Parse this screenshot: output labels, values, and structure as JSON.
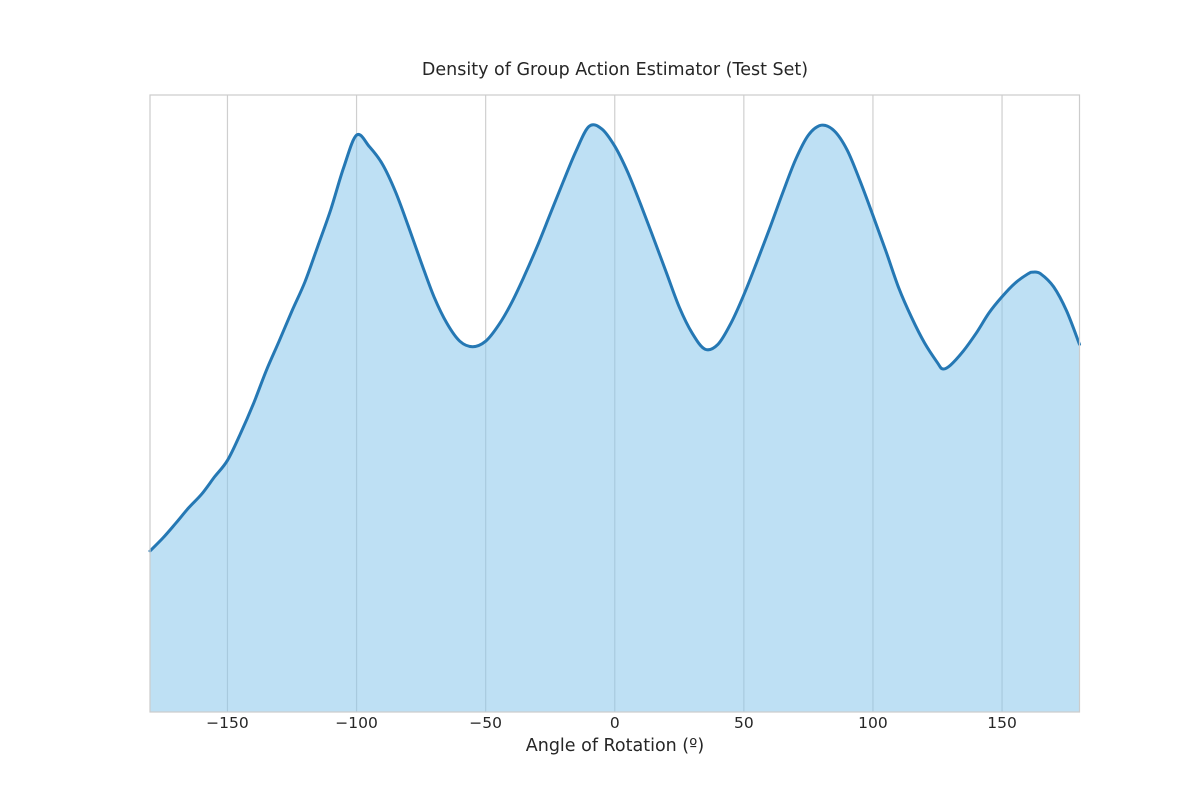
{
  "chart_data": {
    "type": "area",
    "title": "Density of Group Action Estimator (Test Set)",
    "xlabel": "Angle of Rotation (º)",
    "ylabel": "",
    "xlim": [
      -180,
      180
    ],
    "x_ticks": [
      {
        "value": -150,
        "label": "−150"
      },
      {
        "value": -100,
        "label": "−100"
      },
      {
        "value": -50,
        "label": "−50"
      },
      {
        "value": 0,
        "label": "0"
      },
      {
        "value": 50,
        "label": "50"
      },
      {
        "value": 100,
        "label": "100"
      },
      {
        "value": 150,
        "label": "150"
      }
    ],
    "y_axis": "no tick labels or gridlines shown; values below are density as fraction of plot height",
    "grid": "vertical gridlines only, drawn below data",
    "legend": "none",
    "series": [
      {
        "name": "kde-density",
        "x": [
          -180,
          -175,
          -170,
          -165,
          -160,
          -155,
          -150,
          -145,
          -140,
          -135,
          -130,
          -125,
          -120,
          -115,
          -110,
          -105,
          -100,
          -95,
          -90,
          -85,
          -80,
          -75,
          -70,
          -65,
          -60,
          -55,
          -50,
          -45,
          -40,
          -35,
          -30,
          -25,
          -20,
          -15,
          -10,
          -5,
          0,
          5,
          10,
          15,
          20,
          25,
          30,
          35,
          40,
          45,
          50,
          55,
          60,
          65,
          70,
          75,
          80,
          85,
          90,
          95,
          100,
          105,
          110,
          115,
          120,
          125,
          127,
          130,
          135,
          140,
          145,
          150,
          155,
          160,
          162,
          165,
          170,
          175,
          180
        ],
        "y": [
          0.261,
          0.282,
          0.306,
          0.331,
          0.353,
          0.381,
          0.408,
          0.451,
          0.499,
          0.553,
          0.601,
          0.65,
          0.697,
          0.755,
          0.814,
          0.882,
          0.935,
          0.916,
          0.888,
          0.844,
          0.788,
          0.729,
          0.673,
          0.63,
          0.601,
          0.592,
          0.601,
          0.627,
          0.663,
          0.707,
          0.755,
          0.807,
          0.859,
          0.909,
          0.949,
          0.945,
          0.917,
          0.875,
          0.823,
          0.768,
          0.712,
          0.656,
          0.614,
          0.588,
          0.596,
          0.63,
          0.676,
          0.729,
          0.784,
          0.841,
          0.895,
          0.935,
          0.951,
          0.942,
          0.911,
          0.861,
          0.805,
          0.747,
          0.687,
          0.639,
          0.598,
          0.566,
          0.556,
          0.562,
          0.585,
          0.614,
          0.647,
          0.673,
          0.695,
          0.71,
          0.713,
          0.71,
          0.689,
          0.65,
          0.596
        ]
      }
    ],
    "features": {
      "peaks_deg": [
        -100,
        -10,
        80,
        162
      ],
      "valleys_deg": [
        -55,
        35,
        126
      ]
    },
    "colors": {
      "line": "#2578b4",
      "fill": "rgba(137,199,235,0.55)",
      "grid": "#cfcfcf",
      "frame": "#cccccc",
      "text": "#262626"
    }
  }
}
